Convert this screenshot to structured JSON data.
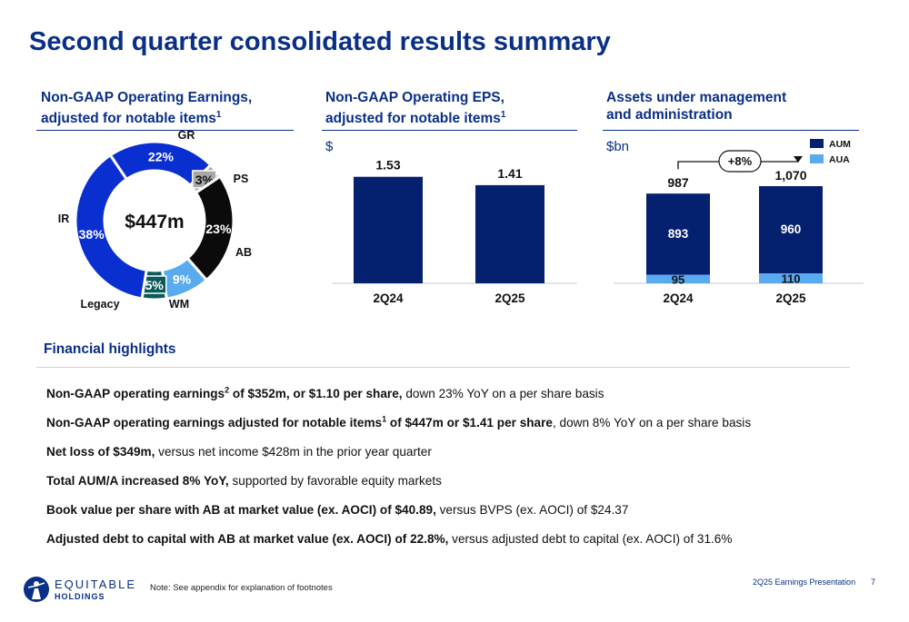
{
  "title": "Second quarter consolidated results summary",
  "colors": {
    "navy": "#0a2f86",
    "bar_navy": "#04206e",
    "light_blue": "#5aaaf0",
    "royal": "#0a2fd0",
    "black": "#0b0b0b",
    "teal": "#0a5a5a",
    "grey": "#a8a8a8"
  },
  "panel1": {
    "title_line1": "Non-GAAP Operating Earnings,",
    "title_line2": "adjusted for notable items",
    "title_sup": "1",
    "center_label": "$447m"
  },
  "panel2": {
    "title_line1": "Non-GAAP Operating EPS,",
    "title_line2": "adjusted for notable items",
    "title_sup": "1",
    "unit": "$"
  },
  "panel3": {
    "title_line1": "Assets under management",
    "title_line2": "and administration",
    "unit": "$bn",
    "growth_label": "+8%"
  },
  "chart_data": [
    {
      "type": "pie",
      "title": "",
      "labels": [
        "GR",
        "PS",
        "AB",
        "WM",
        "Legacy",
        "IR"
      ],
      "value_labels": [
        "22%",
        "3%",
        "23%",
        "9%",
        "5%",
        "38%"
      ],
      "values": [
        22,
        3,
        23,
        9,
        5,
        38
      ],
      "colors": [
        "#0a2fd0",
        "#a8a8a8",
        "#0b0b0b",
        "#5aaaf0",
        "#0a5a5a",
        "#0a2fd0"
      ],
      "center_label": "$447m"
    },
    {
      "type": "bar",
      "title": "",
      "categories": [
        "2Q24",
        "2Q25"
      ],
      "values": [
        1.53,
        1.41
      ],
      "value_labels": [
        "1.53",
        "1.41"
      ],
      "ylim": [
        0,
        1.8
      ]
    },
    {
      "type": "bar",
      "stacked": true,
      "title": "",
      "categories": [
        "2Q24",
        "2Q25"
      ],
      "series": [
        {
          "name": "AUA",
          "values": [
            95,
            110
          ],
          "value_labels": [
            "95",
            "110"
          ],
          "color": "#5aaaf0"
        },
        {
          "name": "AUM",
          "values": [
            893,
            960
          ],
          "value_labels": [
            "893",
            "960"
          ],
          "color": "#04206e"
        }
      ],
      "totals": [
        987,
        1070
      ],
      "total_labels": [
        "987",
        "1,070"
      ],
      "legend": [
        "AUM",
        "AUA"
      ],
      "legend_position": "top-right",
      "ylim": [
        0,
        1200
      ]
    }
  ],
  "highlights": {
    "title": "Financial highlights",
    "items": [
      {
        "bold": "Non-GAAP operating earnings",
        "sup": "2",
        "bold2": " of $352m, or $1.10 per share,",
        "rest": " down 23% YoY on a per share basis"
      },
      {
        "bold": "Non-GAAP operating earnings adjusted for notable items",
        "sup": "1",
        "bold2": " of $447m or $1.41 per share",
        "rest": ", down 8% YoY on a per share basis"
      },
      {
        "bold": "Net loss of $349m,",
        "sup": "",
        "bold2": "",
        "rest": " versus net income $428m in the prior year quarter"
      },
      {
        "bold": "Total AUM/A increased 8% YoY,",
        "sup": "",
        "bold2": "",
        "rest": " supported by favorable equity markets"
      },
      {
        "bold": "Book value per share with AB at market value (ex. AOCI) of $40.89,",
        "sup": "",
        "bold2": "",
        "rest": " versus BVPS (ex. AOCI) of $24.37"
      },
      {
        "bold": "Adjusted debt to capital with AB at market value (ex. AOCI) of 22.8%,",
        "sup": "",
        "bold2": "",
        "rest": " versus adjusted debt to capital (ex. AOCI) of 31.6%"
      }
    ]
  },
  "footer": {
    "logo_name": "EQUITABLE",
    "logo_sub": "HOLDINGS",
    "logo_icon": "equitable-figure-icon",
    "note": "Note: See appendix for explanation of footnotes",
    "presentation": "2Q25 Earnings Presentation",
    "page": "7"
  }
}
